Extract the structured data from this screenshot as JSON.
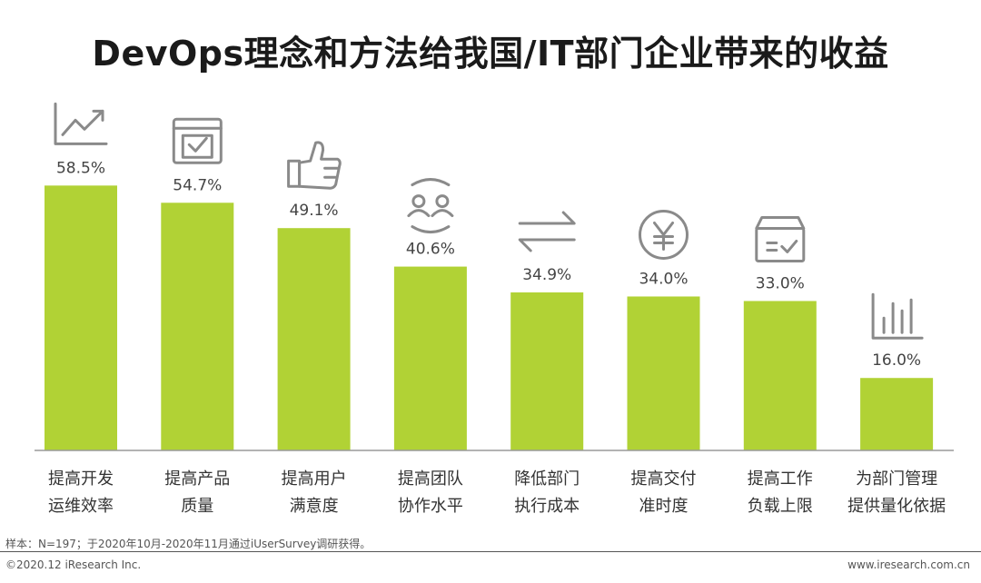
{
  "chart_data": {
    "type": "bar",
    "title": "DevOps理念和方法给我国/IT部门企业带来的收益",
    "categories": [
      [
        "提高开发",
        "运维效率"
      ],
      [
        "提高产品",
        "质量"
      ],
      [
        "提高用户",
        "满意度"
      ],
      [
        "提高团队",
        "协作水平"
      ],
      [
        "降低部门",
        "执行成本"
      ],
      [
        "提高交付",
        "准时度"
      ],
      [
        "提高工作",
        "负载上限"
      ],
      [
        "为部门管理",
        "提供量化依据"
      ]
    ],
    "values": [
      58.5,
      54.7,
      49.1,
      40.6,
      34.9,
      34.0,
      33.0,
      16.0
    ],
    "value_labels": [
      "58.5%",
      "54.7%",
      "49.1%",
      "40.6%",
      "34.9%",
      "34.0%",
      "33.0%",
      "16.0%"
    ],
    "icons": [
      "trend-chart-icon",
      "checkbox-window-icon",
      "thumbs-up-icon",
      "team-sync-icon",
      "exchange-arrows-icon",
      "yen-coin-icon",
      "delivery-box-icon",
      "bar-stats-icon"
    ],
    "ylim": [
      0,
      70
    ],
    "grid": false,
    "bar_color": "#b1d235",
    "icon_color": "#8a8a8a"
  },
  "footer": {
    "note": "样本：N=197；于2020年10月-2020年11月通过iUserSurvey调研获得。",
    "copyright": "©2020.12 iResearch Inc.",
    "website": "www.iresearch.com.cn"
  }
}
